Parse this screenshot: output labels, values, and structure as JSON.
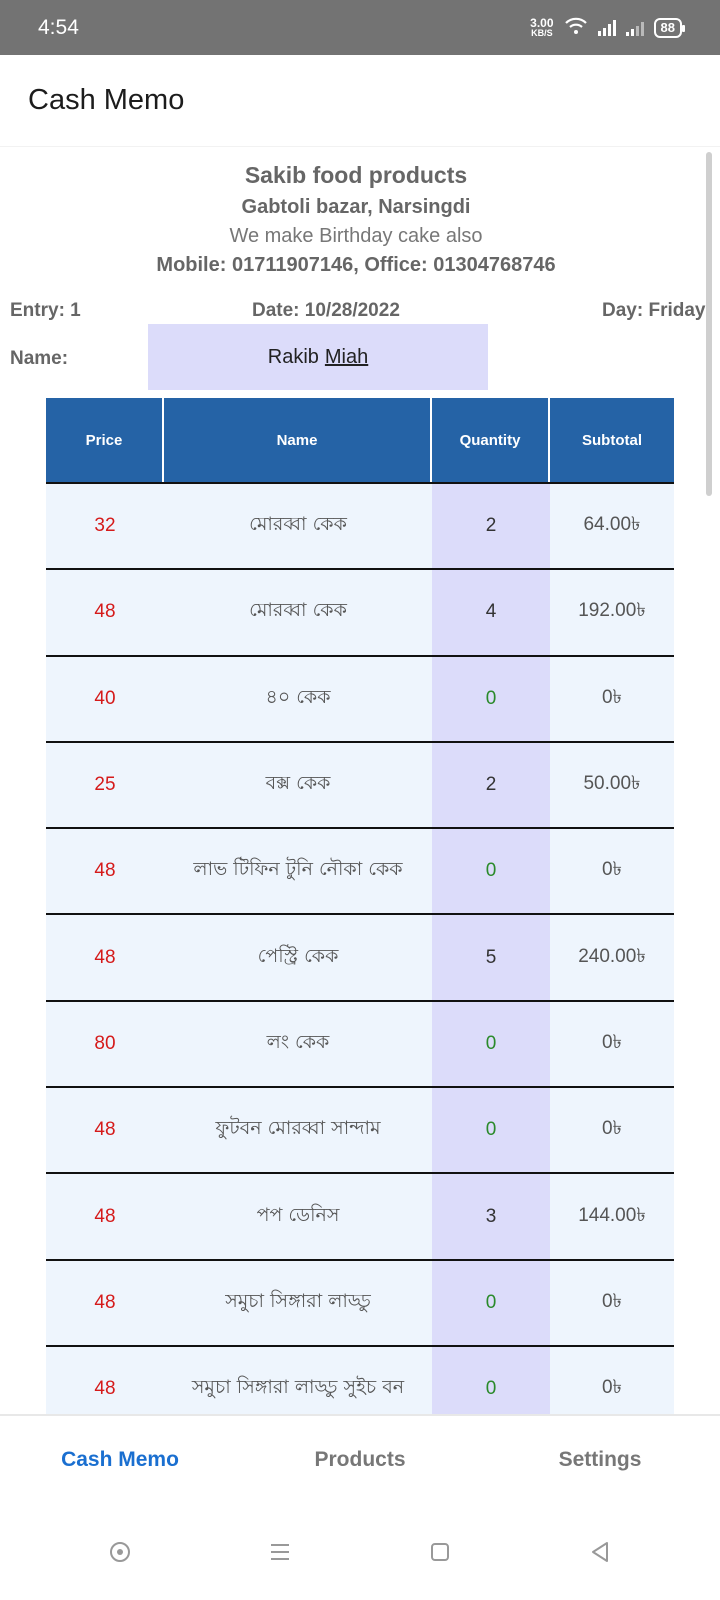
{
  "status": {
    "time": "4:54",
    "speed_value": "3.00",
    "speed_unit": "KB/S",
    "battery": "88"
  },
  "app_bar": {
    "title": "Cash Memo"
  },
  "shop": {
    "name": "Sakib food products",
    "address": "Gabtoli bazar, Narsingdi",
    "tagline": "We make Birthday cake also",
    "contact": "Mobile: 01711907146, Office: 01304768746"
  },
  "memo": {
    "entry": "Entry: 1",
    "date": "Date:  10/28/2022",
    "day": "Day: Friday",
    "name_label": "Name:",
    "customer_first": "Rakib",
    "customer_last": "Miah"
  },
  "table": {
    "headers": [
      "Price",
      "Name",
      "Quantity",
      "Subtotal"
    ],
    "rows": [
      {
        "price": "32",
        "name": "মোরব্বা কেক",
        "qty": "2",
        "subtotal": "64.00৳"
      },
      {
        "price": "48",
        "name": "মোরব্বা কেক",
        "qty": "4",
        "subtotal": "192.00৳"
      },
      {
        "price": "40",
        "name": "৪০ কেক",
        "qty": "0",
        "subtotal": "0৳"
      },
      {
        "price": "25",
        "name": "বক্স কেক",
        "qty": "2",
        "subtotal": "50.00৳"
      },
      {
        "price": "48",
        "name": "লাভ টিফিন টুনি নৌকা কেক",
        "qty": "0",
        "subtotal": "0৳"
      },
      {
        "price": "48",
        "name": "পেস্ট্রি কেক",
        "qty": "5",
        "subtotal": "240.00৳"
      },
      {
        "price": "80",
        "name": "লং কেক",
        "qty": "0",
        "subtotal": "0৳"
      },
      {
        "price": "48",
        "name": "ফুটবন মোরব্বা সান্দাম",
        "qty": "0",
        "subtotal": "0৳"
      },
      {
        "price": "48",
        "name": "পপ ডেনিস",
        "qty": "3",
        "subtotal": "144.00৳"
      },
      {
        "price": "48",
        "name": "সমুচা সিঙ্গারা লাড্ডু",
        "qty": "0",
        "subtotal": "0৳"
      },
      {
        "price": "48",
        "name": "সমুচা সিঙ্গারা লাড্ডু সুইচ বন",
        "qty": "0",
        "subtotal": "0৳"
      }
    ]
  },
  "bottom_nav": {
    "items": [
      "Cash Memo",
      "Products",
      "Settings"
    ],
    "active": "Cash Memo"
  },
  "colors": {
    "header": "#2563a6",
    "price_text": "#d51a1a",
    "zero_qty": "#2a8a2a",
    "qty_col": "#dcdcfa",
    "active_tab": "#1a6fd0"
  }
}
